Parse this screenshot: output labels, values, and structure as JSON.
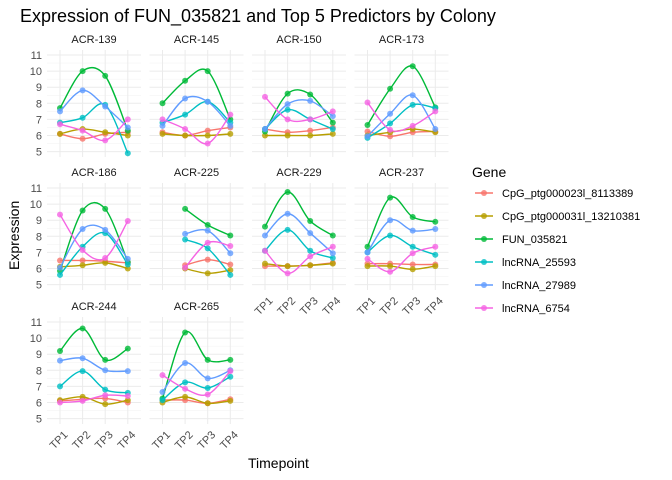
{
  "chart_data": {
    "type": "line",
    "title": "Expression of FUN_035821 and Top 5 Predictors by Colony",
    "xlabel": "Timepoint",
    "ylabel": "Expression",
    "categories": [
      "TP1",
      "TP2",
      "TP3",
      "TP4"
    ],
    "ylim": [
      4.6,
      11.3
    ],
    "yticks": [
      5,
      6,
      7,
      8,
      9,
      10,
      11
    ],
    "grid": true,
    "smoothed_lines": true,
    "legend": {
      "title": "Gene",
      "position": "right"
    },
    "series_names": [
      "CpG_ptg000023l_8113389",
      "CpG_ptg000031l_13210381",
      "FUN_035821",
      "lncRNA_25593",
      "lncRNA_27989",
      "lncRNA_6754"
    ],
    "colors": [
      "#F8766D",
      "#B79F00",
      "#00BA38",
      "#00BFC4",
      "#619CFF",
      "#F564E3"
    ],
    "facets": [
      {
        "name": "ACR-139",
        "series": [
          [
            6.1,
            5.8,
            6.1,
            6.2
          ],
          [
            6.1,
            6.4,
            6.2,
            6.0
          ],
          [
            7.7,
            10.0,
            9.7,
            6.3
          ],
          [
            6.8,
            7.1,
            7.9,
            4.9
          ],
          [
            7.5,
            8.8,
            7.8,
            6.5
          ],
          [
            6.7,
            6.3,
            5.7,
            7.0
          ]
        ]
      },
      {
        "name": "ACR-145",
        "series": [
          [
            6.2,
            6.0,
            6.3,
            6.5
          ],
          [
            6.1,
            6.0,
            6.0,
            6.1
          ],
          [
            8.0,
            9.4,
            10.0,
            7.0
          ],
          [
            6.8,
            7.3,
            8.1,
            6.8
          ],
          [
            6.6,
            8.3,
            8.1,
            6.6
          ],
          [
            7.0,
            6.4,
            5.5,
            7.3
          ]
        ]
      },
      {
        "name": "ACR-150",
        "series": [
          [
            6.4,
            6.2,
            6.3,
            6.5
          ],
          [
            6.0,
            6.0,
            6.0,
            6.1
          ],
          [
            6.25,
            8.6,
            8.55,
            6.8
          ],
          [
            6.4,
            7.6,
            7.0,
            6.4
          ],
          [
            6.4,
            7.95,
            8.15,
            7.2
          ],
          [
            8.4,
            7.0,
            7.0,
            7.5
          ]
        ]
      },
      {
        "name": "ACR-173",
        "series": [
          [
            6.25,
            5.95,
            6.2,
            6.25
          ],
          [
            6.0,
            6.2,
            6.4,
            6.2
          ],
          [
            6.65,
            8.9,
            10.3,
            7.75
          ],
          [
            5.85,
            6.75,
            7.9,
            7.7
          ],
          [
            5.95,
            7.35,
            8.5,
            6.4
          ],
          [
            8.05,
            6.35,
            6.6,
            7.5
          ]
        ]
      },
      {
        "name": "ACR-186",
        "series": [
          [
            6.5,
            6.5,
            6.45,
            6.35
          ],
          [
            6.1,
            6.2,
            6.35,
            6.0
          ],
          [
            5.85,
            9.6,
            9.7,
            6.4
          ],
          [
            5.6,
            7.35,
            8.2,
            6.25
          ],
          [
            6.05,
            8.45,
            8.4,
            6.6
          ],
          [
            9.35,
            7.15,
            6.65,
            8.95
          ]
        ]
      },
      {
        "name": "ACR-225",
        "series": [
          [
            null,
            6.2,
            6.55,
            6.25
          ],
          [
            null,
            6.0,
            5.7,
            5.9
          ],
          [
            null,
            9.7,
            8.7,
            8.05
          ],
          [
            null,
            7.8,
            7.25,
            5.6
          ],
          [
            null,
            8.15,
            8.35,
            6.95
          ],
          [
            null,
            6.05,
            7.6,
            7.4
          ]
        ]
      },
      {
        "name": "ACR-229",
        "series": [
          [
            6.15,
            6.15,
            6.2,
            6.35
          ],
          [
            6.3,
            6.15,
            6.2,
            6.3
          ],
          [
            8.6,
            10.75,
            8.95,
            8.05
          ],
          [
            7.1,
            8.4,
            7.1,
            6.65
          ],
          [
            8.05,
            9.4,
            8.2,
            6.95
          ],
          [
            7.1,
            5.7,
            6.75,
            7.35
          ]
        ]
      },
      {
        "name": "ACR-237",
        "series": [
          [
            6.3,
            6.3,
            6.25,
            6.25
          ],
          [
            6.15,
            6.15,
            5.95,
            6.15
          ],
          [
            7.35,
            10.4,
            9.2,
            8.9
          ],
          [
            7.0,
            8.05,
            7.35,
            6.85
          ],
          [
            7.0,
            9.0,
            8.35,
            8.45
          ],
          [
            6.6,
            5.8,
            6.95,
            7.35
          ]
        ]
      },
      {
        "name": "ACR-244",
        "series": [
          [
            6.1,
            6.2,
            6.25,
            6.0
          ],
          [
            6.15,
            6.35,
            5.9,
            6.15
          ],
          [
            9.2,
            10.6,
            8.65,
            9.35
          ],
          [
            7.0,
            7.95,
            6.8,
            6.6
          ],
          [
            8.6,
            8.75,
            8.0,
            7.95
          ],
          [
            6.0,
            6.1,
            6.45,
            6.4
          ]
        ]
      },
      {
        "name": "ACR-265",
        "series": [
          [
            6.15,
            6.15,
            5.95,
            6.2
          ],
          [
            6.0,
            6.35,
            5.95,
            6.1
          ],
          [
            6.25,
            10.35,
            8.65,
            8.65
          ],
          [
            6.15,
            7.25,
            6.9,
            7.6
          ],
          [
            6.65,
            8.45,
            7.5,
            8.0
          ],
          [
            7.7,
            6.85,
            6.5,
            7.95
          ]
        ]
      }
    ]
  }
}
